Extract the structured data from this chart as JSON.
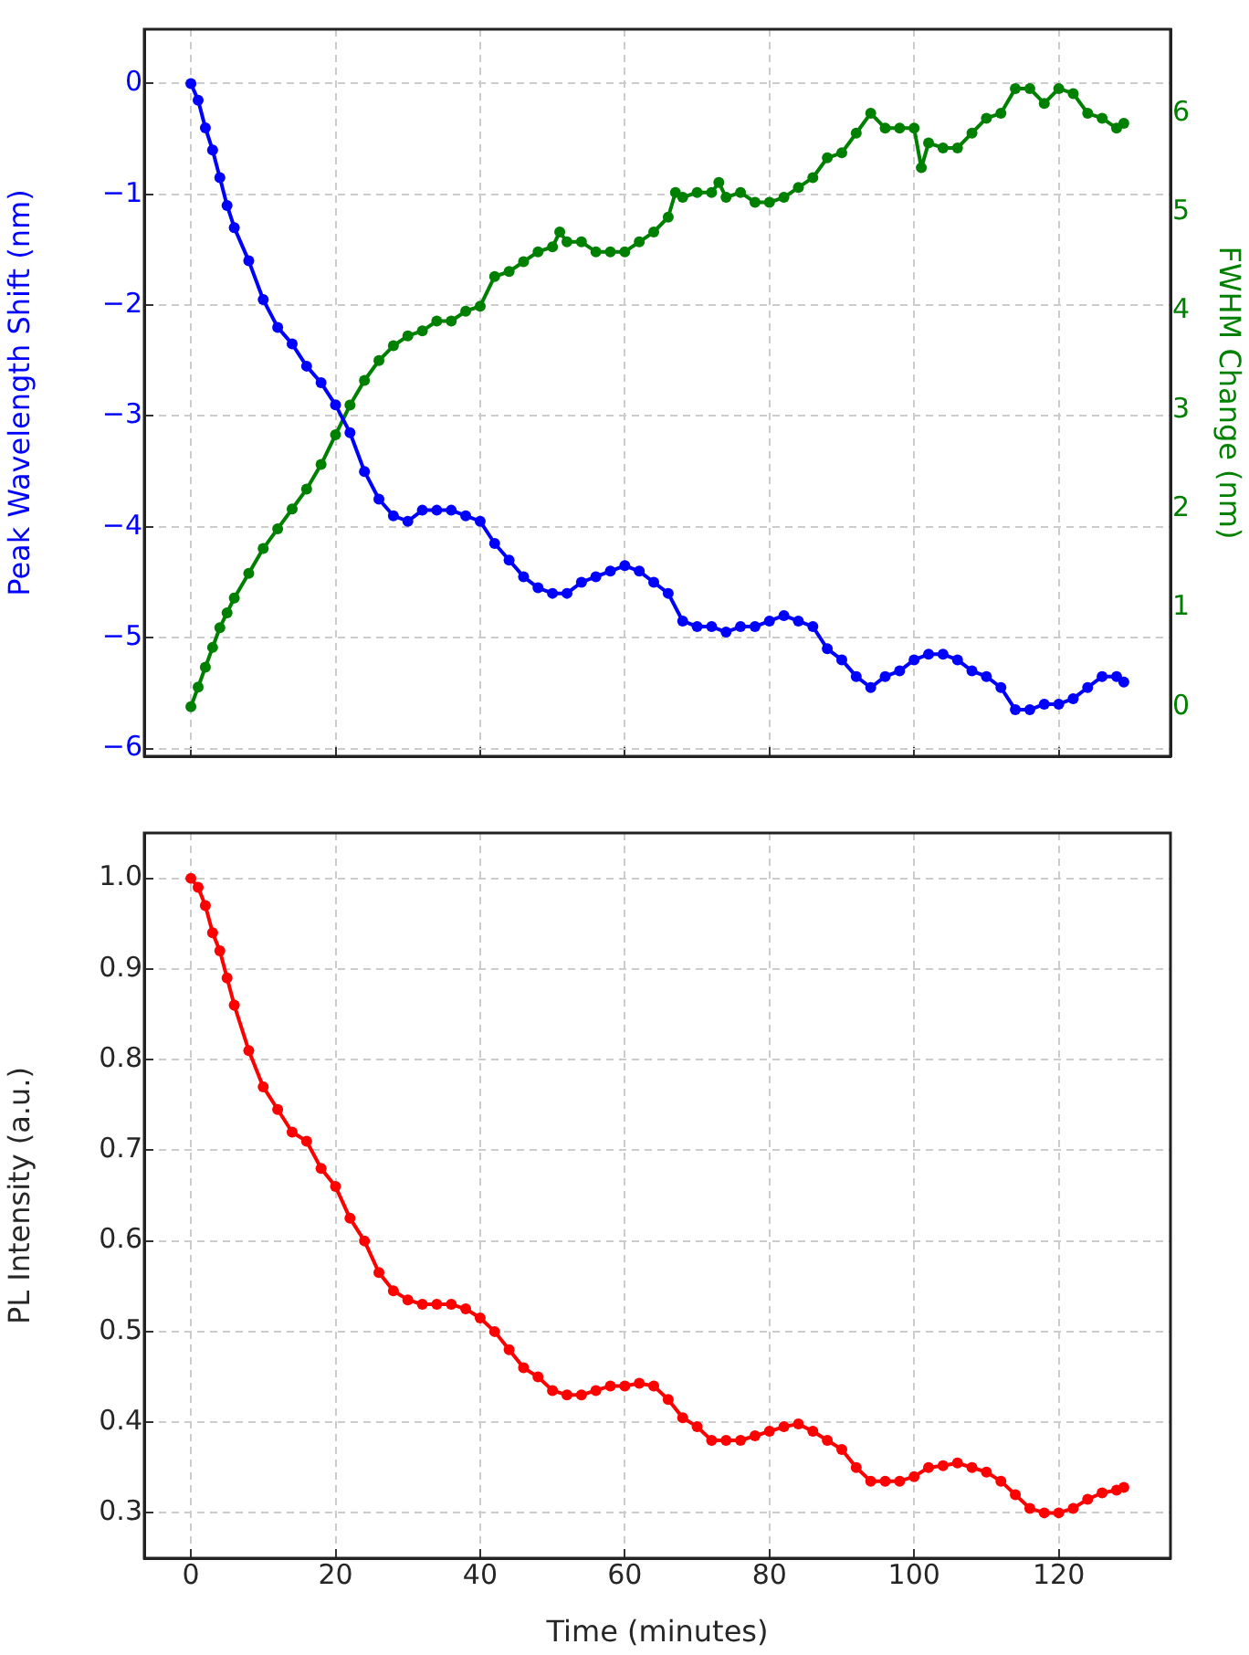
{
  "chart_data": [
    {
      "type": "line",
      "ylabel": "Peak Wavelength Shift (nm)",
      "y2label": "FWHM Change (nm)",
      "xlim": [
        -6.45,
        135.45
      ],
      "xticks": [
        0,
        20,
        40,
        60,
        80,
        100,
        120
      ],
      "ylim": [
        -6.07,
        0.49
      ],
      "yticks": [
        {
          "value": -6,
          "label": "−6"
        },
        {
          "value": -5,
          "label": "−5"
        },
        {
          "value": -4,
          "label": "−4"
        },
        {
          "value": -3,
          "label": "−3"
        },
        {
          "value": -2,
          "label": "−2"
        },
        {
          "value": -1,
          "label": "−1"
        },
        0
      ],
      "y2lim": [
        -0.5,
        6.85
      ],
      "y2ticks": [
        0,
        1,
        2,
        3,
        4,
        5,
        6
      ],
      "tick_labels": "y",
      "grid": true,
      "legend": false,
      "marker": "circle",
      "line_style": "solid",
      "series": [
        {
          "color": "#0000ff",
          "x": [
            0,
            1,
            2,
            3,
            4,
            5,
            6,
            8,
            10,
            12,
            14,
            16,
            18,
            20,
            22,
            24,
            26,
            28,
            30,
            32,
            34,
            36,
            38,
            40,
            42,
            44,
            46,
            48,
            50,
            52,
            54,
            56,
            58,
            60,
            62,
            64,
            66,
            68,
            70,
            72,
            74,
            76,
            78,
            80,
            82,
            84,
            86,
            88,
            90,
            92,
            94,
            96,
            98,
            100,
            102,
            104,
            106,
            108,
            110,
            112,
            114,
            116,
            118,
            120,
            122,
            124,
            126,
            128,
            129
          ],
          "values": [
            0,
            -0.15,
            -0.4,
            -0.6,
            -0.85,
            -1.1,
            -1.3,
            -1.6,
            -1.95,
            -2.2,
            -2.35,
            -2.55,
            -2.7,
            -2.9,
            -3.15,
            -3.5,
            -3.75,
            -3.9,
            -3.95,
            -3.85,
            -3.85,
            -3.85,
            -3.9,
            -3.95,
            -4.15,
            -4.3,
            -4.45,
            -4.55,
            -4.6,
            -4.6,
            -4.5,
            -4.45,
            -4.4,
            -4.35,
            -4.4,
            -4.5,
            -4.6,
            -4.85,
            -4.9,
            -4.9,
            -4.95,
            -4.9,
            -4.9,
            -4.85,
            -4.8,
            -4.85,
            -4.9,
            -5.1,
            -5.2,
            -5.35,
            -5.45,
            -5.35,
            -5.3,
            -5.2,
            -5.15,
            -5.15,
            -5.2,
            -5.3,
            -5.35,
            -5.45,
            -5.65,
            -5.65,
            -5.6,
            -5.6,
            -5.55,
            -5.45,
            -5.35,
            -5.35,
            -5.4
          ]
        },
        {
          "color": "#008000",
          "axis": "y2",
          "x": [
            0,
            1,
            2,
            3,
            4,
            5,
            6,
            8,
            10,
            12,
            14,
            16,
            18,
            20,
            22,
            24,
            26,
            28,
            30,
            32,
            34,
            36,
            38,
            40,
            42,
            44,
            46,
            48,
            50,
            51,
            52,
            54,
            56,
            58,
            60,
            62,
            64,
            66,
            67,
            68,
            70,
            72,
            73,
            74,
            76,
            78,
            80,
            82,
            84,
            86,
            88,
            90,
            92,
            94,
            96,
            98,
            100,
            101,
            102,
            104,
            106,
            108,
            110,
            112,
            114,
            116,
            118,
            120,
            122,
            124,
            126,
            128,
            129
          ],
          "values": [
            0,
            0.2,
            0.4,
            0.6,
            0.8,
            0.95,
            1.1,
            1.35,
            1.6,
            1.8,
            2.0,
            2.2,
            2.45,
            2.75,
            3.05,
            3.3,
            3.5,
            3.65,
            3.75,
            3.8,
            3.9,
            3.9,
            4.0,
            4.05,
            4.35,
            4.4,
            4.5,
            4.6,
            4.65,
            4.8,
            4.7,
            4.7,
            4.6,
            4.6,
            4.6,
            4.7,
            4.8,
            4.95,
            5.2,
            5.15,
            5.2,
            5.2,
            5.3,
            5.15,
            5.2,
            5.1,
            5.1,
            5.15,
            5.25,
            5.35,
            5.55,
            5.6,
            5.8,
            6.0,
            5.85,
            5.85,
            5.85,
            5.45,
            5.7,
            5.65,
            5.65,
            5.8,
            5.95,
            6.0,
            6.25,
            6.25,
            6.1,
            6.25,
            6.2,
            6.0,
            5.95,
            5.85,
            5.9
          ]
        }
      ]
    },
    {
      "type": "line",
      "xlabel": "Time (minutes)",
      "ylabel": "PL Intensity (a.u.)",
      "xlim": [
        -6.45,
        135.45
      ],
      "xticks": [
        0,
        20,
        40,
        60,
        80,
        100,
        120
      ],
      "ylim": [
        0.25,
        1.05
      ],
      "yticks": [
        {
          "value": 0.3,
          "label": "0.3"
        },
        {
          "value": 0.4,
          "label": "0.4"
        },
        {
          "value": 0.5,
          "label": "0.5"
        },
        {
          "value": 0.6,
          "label": "0.6"
        },
        {
          "value": 0.7,
          "label": "0.7"
        },
        {
          "value": 0.8,
          "label": "0.8"
        },
        {
          "value": 0.9,
          "label": "0.9"
        },
        {
          "value": 1.0,
          "label": "1.0"
        }
      ],
      "grid": true,
      "legend": false,
      "marker": "circle",
      "line_style": "solid",
      "series": [
        {
          "color": "#ff0000",
          "x": [
            0,
            1,
            2,
            3,
            4,
            5,
            6,
            8,
            10,
            12,
            14,
            16,
            18,
            20,
            22,
            24,
            26,
            28,
            30,
            32,
            34,
            36,
            38,
            40,
            42,
            44,
            46,
            48,
            50,
            52,
            54,
            56,
            58,
            60,
            62,
            64,
            66,
            68,
            70,
            72,
            74,
            76,
            78,
            80,
            82,
            84,
            86,
            88,
            90,
            92,
            94,
            96,
            98,
            100,
            102,
            104,
            106,
            108,
            110,
            112,
            114,
            116,
            118,
            120,
            122,
            124,
            126,
            128,
            129
          ],
          "values": [
            1.0,
            0.99,
            0.97,
            0.94,
            0.92,
            0.89,
            0.86,
            0.81,
            0.77,
            0.745,
            0.72,
            0.71,
            0.68,
            0.66,
            0.625,
            0.6,
            0.565,
            0.545,
            0.535,
            0.53,
            0.53,
            0.53,
            0.525,
            0.515,
            0.5,
            0.48,
            0.46,
            0.45,
            0.435,
            0.43,
            0.43,
            0.435,
            0.44,
            0.44,
            0.443,
            0.44,
            0.425,
            0.405,
            0.395,
            0.38,
            0.38,
            0.38,
            0.385,
            0.39,
            0.395,
            0.398,
            0.39,
            0.38,
            0.37,
            0.35,
            0.335,
            0.335,
            0.335,
            0.34,
            0.35,
            0.352,
            0.355,
            0.35,
            0.345,
            0.335,
            0.32,
            0.305,
            0.3,
            0.3,
            0.305,
            0.315,
            0.322,
            0.325,
            0.328
          ]
        }
      ]
    }
  ]
}
